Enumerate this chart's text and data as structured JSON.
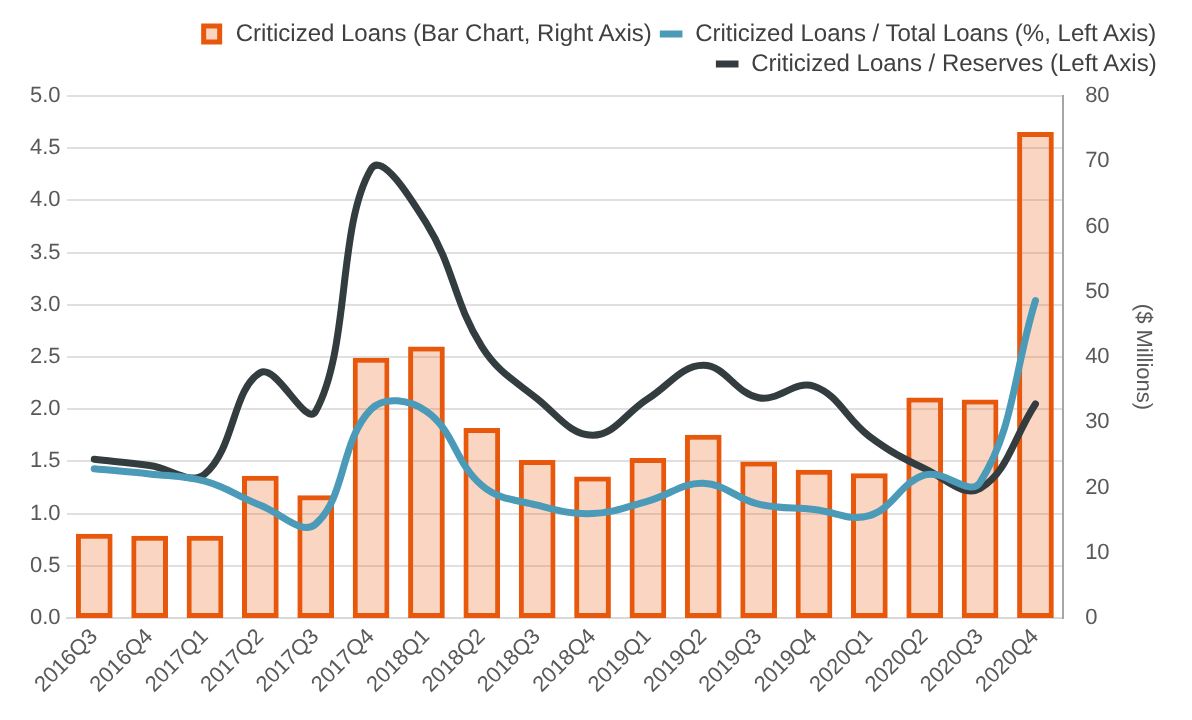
{
  "chart_data": {
    "type": "bar",
    "categories": [
      "2016Q3",
      "2016Q4",
      "2017Q1",
      "2017Q2",
      "2017Q3",
      "2017Q4",
      "2018Q1",
      "2018Q2",
      "2018Q3",
      "2018Q4",
      "2019Q1",
      "2019Q2",
      "2019Q3",
      "2019Q4",
      "2020Q1",
      "2020Q2",
      "2020Q3",
      "2020Q4"
    ],
    "series": [
      {
        "name": "Criticized Loans (Bar Chart, Right Axis)",
        "axis": "y2",
        "color": "#e8580c",
        "values": [
          12.9,
          12.6,
          12.6,
          21.8,
          18.8,
          39.9,
          41.6,
          29.1,
          24.2,
          21.7,
          24.5,
          28.1,
          24.0,
          22.7,
          22.2,
          33.8,
          33.5,
          74.5
        ]
      },
      {
        "name": "Criticized Loans / Total Loans (%, Left Axis)",
        "type": "line",
        "color": "#4a9ab8",
        "values": [
          1.43,
          1.38,
          1.31,
          1.08,
          0.9,
          2.0,
          1.98,
          1.27,
          1.08,
          1.0,
          1.12,
          1.29,
          1.09,
          1.04,
          0.98,
          1.37,
          1.3,
          3.04
        ]
      },
      {
        "name": "Criticized Loans / Reserves (Left Axis)",
        "type": "line",
        "color": "#333c3f",
        "values": [
          1.52,
          1.46,
          1.38,
          2.35,
          1.98,
          4.3,
          3.78,
          2.6,
          2.1,
          1.75,
          2.1,
          2.42,
          2.11,
          2.22,
          1.74,
          1.43,
          1.24,
          2.05
        ]
      }
    ],
    "ylim": [
      0,
      5
    ],
    "yticks": [
      {
        "value": 0,
        "label": "0.0"
      },
      {
        "value": 0.5,
        "label": "0.5"
      },
      {
        "value": 1,
        "label": "1.0"
      },
      {
        "value": 1.5,
        "label": "1.5"
      },
      {
        "value": 2,
        "label": "2.0"
      },
      {
        "value": 2.5,
        "label": "2.5"
      },
      {
        "value": 3,
        "label": "3.0"
      },
      {
        "value": 3.5,
        "label": "3.5"
      },
      {
        "value": 4,
        "label": "4.0"
      },
      {
        "value": 4.5,
        "label": "4.5"
      },
      {
        "value": 5,
        "label": "5.0"
      }
    ],
    "y2lim": [
      0,
      80
    ],
    "y2ticks": [
      0,
      10,
      20,
      30,
      40,
      50,
      60,
      70,
      80
    ],
    "y2label": "($ Millions)",
    "grid": "y",
    "legend": "top right",
    "marker": "none",
    "line_style": "solid"
  }
}
